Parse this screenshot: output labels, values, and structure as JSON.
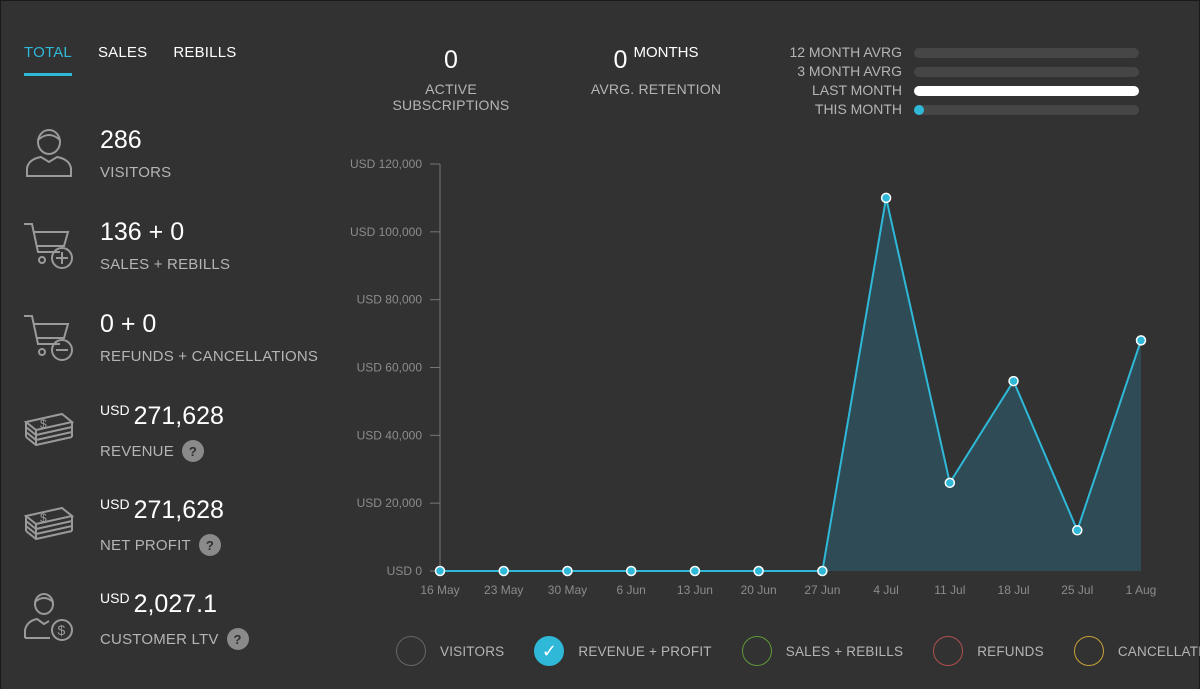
{
  "tabs": [
    {
      "label": "TOTAL",
      "active": true
    },
    {
      "label": "SALES",
      "active": false
    },
    {
      "label": "REBILLS",
      "active": false
    }
  ],
  "stats": {
    "visitors": {
      "value": "286",
      "label": "VISITORS",
      "icon": "user-icon"
    },
    "sales": {
      "value": "136 + 0",
      "label": "SALES + REBILLS",
      "icon": "cart-add-icon"
    },
    "refunds": {
      "value": "0 + 0",
      "label": "REFUNDS + CANCELLATIONS",
      "icon": "cart-remove-icon"
    },
    "revenue": {
      "currency": "USD",
      "value": "271,628",
      "label": "REVENUE",
      "icon": "money-stack-icon"
    },
    "net_profit": {
      "currency": "USD",
      "value": "271,628",
      "label": "NET PROFIT",
      "icon": "money-stack-icon"
    },
    "ltv": {
      "currency": "USD",
      "value": "2,027.1",
      "label": "CUSTOMER LTV",
      "icon": "customer-dollar-icon"
    },
    "help_glyph": "?"
  },
  "metrics": {
    "subscriptions": {
      "value": "0",
      "label": "ACTIVE SUBSCRIPTIONS"
    },
    "retention": {
      "value": "0",
      "unit": "MONTHS",
      "label": "AVRG. RETENTION"
    }
  },
  "averages": [
    {
      "label": "12 MONTH AVRG",
      "fraction": 0,
      "color": "#464646"
    },
    {
      "label": "3 MONTH AVRG",
      "fraction": 0,
      "color": "#464646"
    },
    {
      "label": "LAST MONTH",
      "fraction": 1.0,
      "color": "#ffffff"
    },
    {
      "label": "THIS MONTH",
      "fraction": 0.04,
      "color": "#2fb8d8"
    }
  ],
  "chart_data": {
    "type": "area",
    "categories": [
      "16 May",
      "23 May",
      "30 May",
      "6 Jun",
      "13 Jun",
      "20 Jun",
      "27 Jun",
      "4 Jul",
      "11 Jul",
      "18 Jul",
      "25 Jul",
      "1 Aug"
    ],
    "values": [
      0,
      0,
      0,
      0,
      0,
      0,
      0,
      110000,
      26000,
      56000,
      12000,
      68000
    ],
    "ylim": [
      0,
      120000
    ],
    "yticks": [
      "USD 0",
      "USD 20,000",
      "USD 40,000",
      "USD 60,000",
      "USD 80,000",
      "USD 100,000",
      "USD 120,000"
    ],
    "ytick_values": [
      0,
      20000,
      40000,
      60000,
      80000,
      100000,
      120000
    ],
    "line_color": "#2fb8d8",
    "fill_color": "#2f4b55",
    "grid": false
  },
  "legend": [
    {
      "label": "VISITORS",
      "color": "#666666",
      "checked": false
    },
    {
      "label": "REVENUE + PROFIT",
      "color": "#2fb8d8",
      "checked": true,
      "check_glyph": "✓"
    },
    {
      "label": "SALES + REBILLS",
      "color": "#5f9a3b",
      "checked": false
    },
    {
      "label": "REFUNDS",
      "color": "#b05050",
      "checked": false
    },
    {
      "label": "CANCELLATIONS",
      "color": "#c8a03a",
      "checked": false
    }
  ]
}
